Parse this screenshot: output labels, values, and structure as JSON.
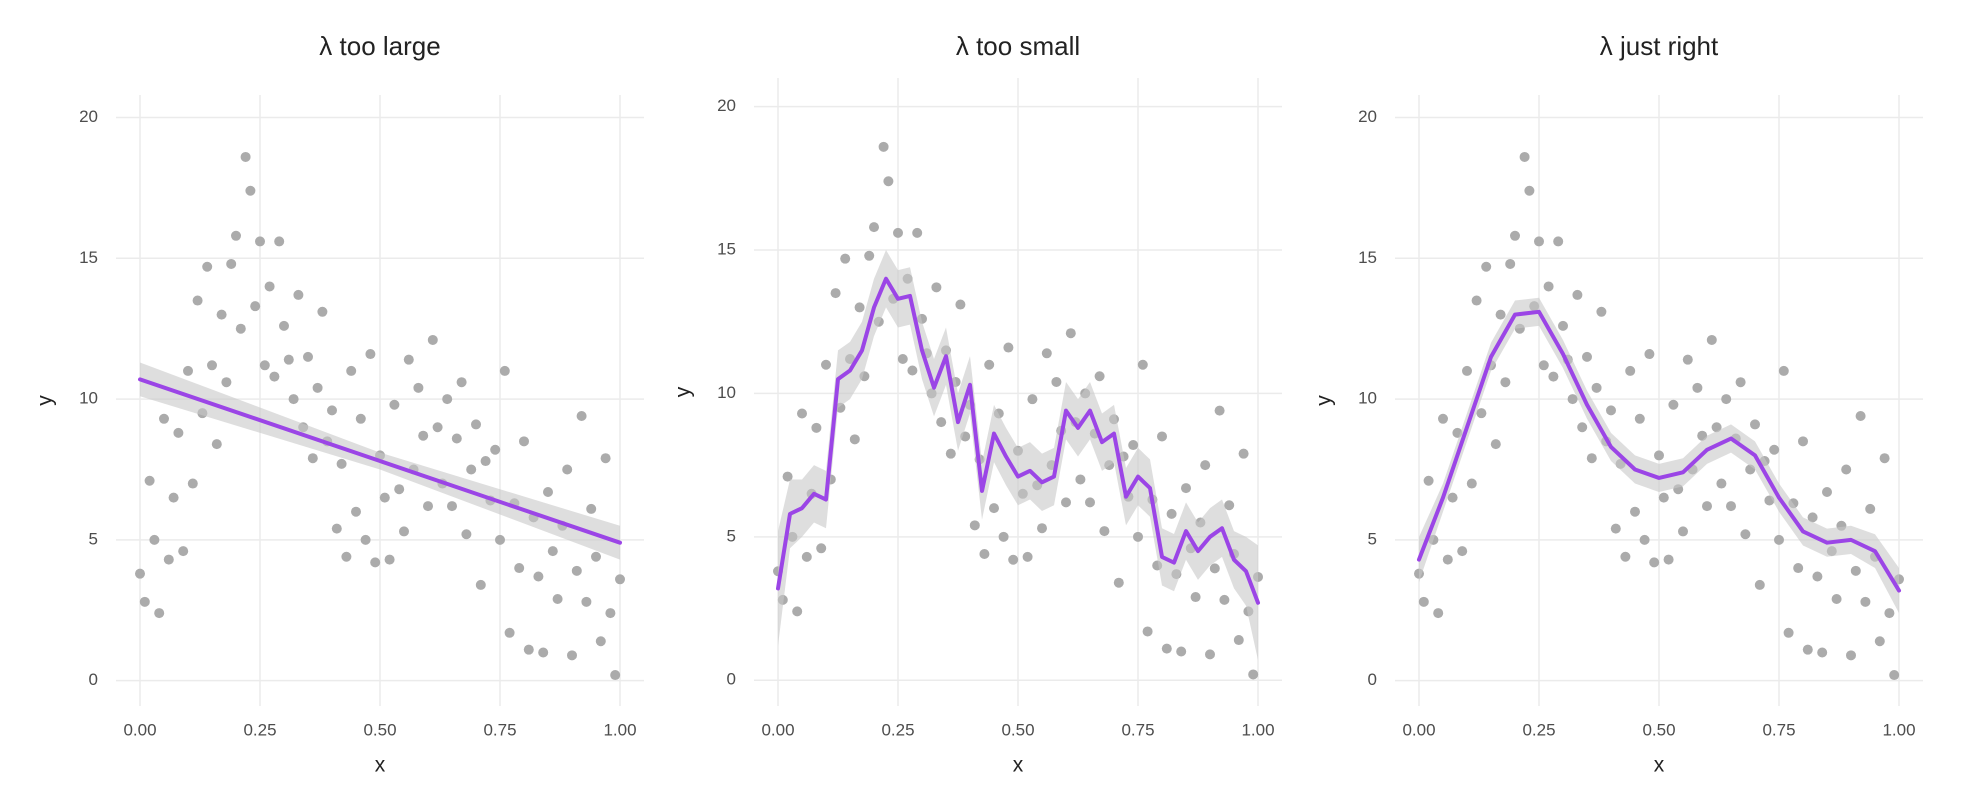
{
  "chart_data": [
    {
      "type": "scatter",
      "title": "λ too large",
      "xlabel": "x",
      "ylabel": "y",
      "point_color": "#ababab",
      "x": [
        0.0,
        0.01,
        0.02,
        0.03,
        0.04,
        0.05,
        0.06,
        0.07,
        0.08,
        0.09,
        0.1,
        0.11,
        0.12,
        0.13,
        0.14,
        0.15,
        0.16,
        0.17,
        0.18,
        0.19,
        0.2,
        0.21,
        0.22,
        0.23,
        0.24,
        0.25,
        0.26,
        0.27,
        0.28,
        0.29,
        0.3,
        0.31,
        0.32,
        0.33,
        0.34,
        0.35,
        0.36,
        0.37,
        0.38,
        0.39,
        0.4,
        0.41,
        0.42,
        0.43,
        0.44,
        0.45,
        0.46,
        0.47,
        0.48,
        0.49,
        0.5,
        0.51,
        0.52,
        0.53,
        0.54,
        0.55,
        0.56,
        0.57,
        0.58,
        0.59,
        0.6,
        0.61,
        0.62,
        0.63,
        0.64,
        0.65,
        0.66,
        0.67,
        0.68,
        0.69,
        0.7,
        0.71,
        0.72,
        0.73,
        0.74,
        0.75,
        0.76,
        0.77,
        0.78,
        0.79,
        0.8,
        0.81,
        0.82,
        0.83,
        0.84,
        0.85,
        0.86,
        0.87,
        0.88,
        0.89,
        0.9,
        0.91,
        0.92,
        0.93,
        0.94,
        0.95,
        0.96,
        0.97,
        0.98,
        0.99,
        1.0
      ],
      "values": [
        3.8,
        2.8,
        7.1,
        5.0,
        2.4,
        9.3,
        4.3,
        6.5,
        8.8,
        4.6,
        11.0,
        7.0,
        13.5,
        9.5,
        14.7,
        11.2,
        8.4,
        13.0,
        10.6,
        14.8,
        15.8,
        12.5,
        18.6,
        17.4,
        13.3,
        15.6,
        11.2,
        14.0,
        10.8,
        15.6,
        12.6,
        11.4,
        10.0,
        13.7,
        9.0,
        11.5,
        7.9,
        10.4,
        13.1,
        8.5,
        9.6,
        5.4,
        7.7,
        4.4,
        11.0,
        6.0,
        9.3,
        5.0,
        11.6,
        4.2,
        8.0,
        6.5,
        4.3,
        9.8,
        6.8,
        5.3,
        11.4,
        7.5,
        10.4,
        8.7,
        6.2,
        12.1,
        9.0,
        7.0,
        10.0,
        6.2,
        8.6,
        10.6,
        5.2,
        7.5,
        9.1,
        3.4,
        7.8,
        6.4,
        8.2,
        5.0,
        11.0,
        1.7,
        6.3,
        4.0,
        8.5,
        1.1,
        5.8,
        3.7,
        1.0,
        6.7,
        4.6,
        2.9,
        5.5,
        7.5,
        0.9,
        3.9,
        9.4,
        2.8,
        6.1,
        4.4,
        1.4,
        7.9,
        2.4,
        0.2,
        3.6
      ],
      "xlim": [
        -0.05,
        1.05
      ],
      "ylim": [
        -0.9,
        20.8
      ],
      "xticks": [
        {
          "value": 0,
          "label": "0.00"
        },
        {
          "value": 0.25,
          "label": "0.25"
        },
        {
          "value": 0.5,
          "label": "0.50"
        },
        {
          "value": 0.75,
          "label": "0.75"
        },
        {
          "value": 1,
          "label": "1.00"
        }
      ],
      "yticks": [
        0,
        5,
        10,
        15,
        20
      ],
      "grid": true,
      "series": [
        {
          "type": "line",
          "color": "#9b45e6",
          "band_color": "#c8c8c8",
          "x": [
            0,
            0.5,
            1
          ],
          "values": [
            10.7,
            7.8,
            4.9
          ],
          "band_lower": [
            10.1,
            7.5,
            4.3
          ],
          "band_upper": [
            11.3,
            8.1,
            5.5
          ]
        }
      ]
    },
    {
      "type": "scatter",
      "title": "λ too small",
      "xlabel": "x",
      "ylabel": "y",
      "point_color": "#ababab",
      "x": [
        0.0,
        0.01,
        0.02,
        0.03,
        0.04,
        0.05,
        0.06,
        0.07,
        0.08,
        0.09,
        0.1,
        0.11,
        0.12,
        0.13,
        0.14,
        0.15,
        0.16,
        0.17,
        0.18,
        0.19,
        0.2,
        0.21,
        0.22,
        0.23,
        0.24,
        0.25,
        0.26,
        0.27,
        0.28,
        0.29,
        0.3,
        0.31,
        0.32,
        0.33,
        0.34,
        0.35,
        0.36,
        0.37,
        0.38,
        0.39,
        0.4,
        0.41,
        0.42,
        0.43,
        0.44,
        0.45,
        0.46,
        0.47,
        0.48,
        0.49,
        0.5,
        0.51,
        0.52,
        0.53,
        0.54,
        0.55,
        0.56,
        0.57,
        0.58,
        0.59,
        0.6,
        0.61,
        0.62,
        0.63,
        0.64,
        0.65,
        0.66,
        0.67,
        0.68,
        0.69,
        0.7,
        0.71,
        0.72,
        0.73,
        0.74,
        0.75,
        0.76,
        0.77,
        0.78,
        0.79,
        0.8,
        0.81,
        0.82,
        0.83,
        0.84,
        0.85,
        0.86,
        0.87,
        0.88,
        0.89,
        0.9,
        0.91,
        0.92,
        0.93,
        0.94,
        0.95,
        0.96,
        0.97,
        0.98,
        0.99,
        1.0
      ],
      "values": [
        3.8,
        2.8,
        7.1,
        5.0,
        2.4,
        9.3,
        4.3,
        6.5,
        8.8,
        4.6,
        11.0,
        7.0,
        13.5,
        9.5,
        14.7,
        11.2,
        8.4,
        13.0,
        10.6,
        14.8,
        15.8,
        12.5,
        18.6,
        17.4,
        13.3,
        15.6,
        11.2,
        14.0,
        10.8,
        15.6,
        12.6,
        11.4,
        10.0,
        13.7,
        9.0,
        11.5,
        7.9,
        10.4,
        13.1,
        8.5,
        9.6,
        5.4,
        7.7,
        4.4,
        11.0,
        6.0,
        9.3,
        5.0,
        11.6,
        4.2,
        8.0,
        6.5,
        4.3,
        9.8,
        6.8,
        5.3,
        11.4,
        7.5,
        10.4,
        8.7,
        6.2,
        12.1,
        9.0,
        7.0,
        10.0,
        6.2,
        8.6,
        10.6,
        5.2,
        7.5,
        9.1,
        3.4,
        7.8,
        6.4,
        8.2,
        5.0,
        11.0,
        1.7,
        6.3,
        4.0,
        8.5,
        1.1,
        5.8,
        3.7,
        1.0,
        6.7,
        4.6,
        2.9,
        5.5,
        7.5,
        0.9,
        3.9,
        9.4,
        2.8,
        6.1,
        4.4,
        1.4,
        7.9,
        2.4,
        0.2,
        3.6
      ],
      "xlim": [
        -0.05,
        1.05
      ],
      "ylim": [
        -0.9,
        21.0
      ],
      "xticks": [
        {
          "value": 0,
          "label": "0.00"
        },
        {
          "value": 0.25,
          "label": "0.25"
        },
        {
          "value": 0.5,
          "label": "0.50"
        },
        {
          "value": 0.75,
          "label": "0.75"
        },
        {
          "value": 1,
          "label": "1.00"
        }
      ],
      "yticks": [
        0,
        5,
        10,
        15,
        20
      ],
      "grid": true,
      "series": [
        {
          "type": "line",
          "color": "#9b45e6",
          "band_color": "#c8c8c8",
          "x": [
            0,
            0.025,
            0.05,
            0.075,
            0.1,
            0.125,
            0.15,
            0.175,
            0.2,
            0.225,
            0.25,
            0.275,
            0.3,
            0.325,
            0.35,
            0.375,
            0.4,
            0.425,
            0.45,
            0.475,
            0.5,
            0.525,
            0.55,
            0.575,
            0.6,
            0.625,
            0.65,
            0.675,
            0.7,
            0.725,
            0.75,
            0.775,
            0.8,
            0.825,
            0.85,
            0.875,
            0.9,
            0.925,
            0.95,
            0.975,
            1.0
          ],
          "values": [
            3.2,
            5.8,
            6.0,
            6.5,
            6.3,
            10.5,
            10.8,
            11.5,
            13.0,
            14.0,
            13.3,
            13.4,
            11.5,
            10.2,
            11.3,
            9.0,
            10.3,
            6.6,
            8.6,
            7.8,
            7.1,
            7.3,
            6.9,
            7.1,
            9.4,
            8.8,
            9.4,
            8.3,
            8.6,
            6.4,
            7.1,
            6.7,
            4.3,
            4.1,
            5.2,
            4.5,
            5.0,
            5.3,
            4.2,
            3.8,
            2.7
          ],
          "band_lower": [
            1.2,
            4.6,
            5.0,
            5.5,
            5.3,
            9.5,
            9.8,
            10.5,
            12.0,
            13.0,
            12.3,
            12.4,
            10.5,
            9.2,
            10.3,
            8.0,
            9.3,
            5.6,
            7.6,
            6.8,
            6.1,
            6.3,
            5.9,
            6.1,
            8.4,
            7.8,
            8.4,
            7.3,
            7.6,
            5.4,
            6.1,
            5.7,
            3.3,
            3.1,
            4.2,
            3.5,
            4.0,
            4.3,
            3.2,
            2.6,
            0.7
          ],
          "band_upper": [
            5.2,
            7.0,
            7.0,
            7.5,
            7.3,
            11.5,
            11.8,
            12.5,
            14.0,
            15.0,
            14.3,
            14.4,
            12.5,
            11.2,
            12.3,
            10.0,
            11.3,
            7.6,
            9.6,
            8.8,
            8.1,
            8.3,
            7.9,
            8.1,
            10.4,
            9.8,
            10.4,
            9.3,
            9.6,
            7.4,
            8.1,
            7.7,
            5.3,
            5.1,
            6.2,
            5.5,
            6.0,
            6.3,
            5.2,
            5.0,
            4.7
          ]
        }
      ]
    },
    {
      "type": "scatter",
      "title": "λ just right",
      "xlabel": "x",
      "ylabel": "y",
      "point_color": "#ababab",
      "x": [
        0.0,
        0.01,
        0.02,
        0.03,
        0.04,
        0.05,
        0.06,
        0.07,
        0.08,
        0.09,
        0.1,
        0.11,
        0.12,
        0.13,
        0.14,
        0.15,
        0.16,
        0.17,
        0.18,
        0.19,
        0.2,
        0.21,
        0.22,
        0.23,
        0.24,
        0.25,
        0.26,
        0.27,
        0.28,
        0.29,
        0.3,
        0.31,
        0.32,
        0.33,
        0.34,
        0.35,
        0.36,
        0.37,
        0.38,
        0.39,
        0.4,
        0.41,
        0.42,
        0.43,
        0.44,
        0.45,
        0.46,
        0.47,
        0.48,
        0.49,
        0.5,
        0.51,
        0.52,
        0.53,
        0.54,
        0.55,
        0.56,
        0.57,
        0.58,
        0.59,
        0.6,
        0.61,
        0.62,
        0.63,
        0.64,
        0.65,
        0.66,
        0.67,
        0.68,
        0.69,
        0.7,
        0.71,
        0.72,
        0.73,
        0.74,
        0.75,
        0.76,
        0.77,
        0.78,
        0.79,
        0.8,
        0.81,
        0.82,
        0.83,
        0.84,
        0.85,
        0.86,
        0.87,
        0.88,
        0.89,
        0.9,
        0.91,
        0.92,
        0.93,
        0.94,
        0.95,
        0.96,
        0.97,
        0.98,
        0.99,
        1.0
      ],
      "values": [
        3.8,
        2.8,
        7.1,
        5.0,
        2.4,
        9.3,
        4.3,
        6.5,
        8.8,
        4.6,
        11.0,
        7.0,
        13.5,
        9.5,
        14.7,
        11.2,
        8.4,
        13.0,
        10.6,
        14.8,
        15.8,
        12.5,
        18.6,
        17.4,
        13.3,
        15.6,
        11.2,
        14.0,
        10.8,
        15.6,
        12.6,
        11.4,
        10.0,
        13.7,
        9.0,
        11.5,
        7.9,
        10.4,
        13.1,
        8.5,
        9.6,
        5.4,
        7.7,
        4.4,
        11.0,
        6.0,
        9.3,
        5.0,
        11.6,
        4.2,
        8.0,
        6.5,
        4.3,
        9.8,
        6.8,
        5.3,
        11.4,
        7.5,
        10.4,
        8.7,
        6.2,
        12.1,
        9.0,
        7.0,
        10.0,
        6.2,
        8.6,
        10.6,
        5.2,
        7.5,
        9.1,
        3.4,
        7.8,
        6.4,
        8.2,
        5.0,
        11.0,
        1.7,
        6.3,
        4.0,
        8.5,
        1.1,
        5.8,
        3.7,
        1.0,
        6.7,
        4.6,
        2.9,
        5.5,
        7.5,
        0.9,
        3.9,
        9.4,
        2.8,
        6.1,
        4.4,
        1.4,
        7.9,
        2.4,
        0.2,
        3.6
      ],
      "xlim": [
        -0.05,
        1.05
      ],
      "ylim": [
        -0.9,
        20.8
      ],
      "xticks": [
        {
          "value": 0,
          "label": "0.00"
        },
        {
          "value": 0.25,
          "label": "0.25"
        },
        {
          "value": 0.5,
          "label": "0.50"
        },
        {
          "value": 0.75,
          "label": "0.75"
        },
        {
          "value": 1,
          "label": "1.00"
        }
      ],
      "yticks": [
        0,
        5,
        10,
        15,
        20
      ],
      "grid": true,
      "series": [
        {
          "type": "line",
          "color": "#9b45e6",
          "band_color": "#c8c8c8",
          "x": [
            0,
            0.05,
            0.1,
            0.15,
            0.2,
            0.25,
            0.3,
            0.35,
            0.4,
            0.45,
            0.5,
            0.55,
            0.6,
            0.65,
            0.7,
            0.75,
            0.8,
            0.85,
            0.9,
            0.95,
            1.0
          ],
          "values": [
            4.3,
            6.5,
            9.0,
            11.5,
            13.0,
            13.1,
            11.6,
            9.8,
            8.3,
            7.5,
            7.2,
            7.4,
            8.2,
            8.6,
            8.0,
            6.5,
            5.3,
            4.9,
            5.0,
            4.6,
            3.2
          ],
          "band_lower": [
            3.5,
            6.0,
            8.5,
            11.0,
            12.5,
            12.6,
            11.1,
            9.3,
            7.8,
            7.0,
            6.7,
            6.9,
            7.7,
            8.1,
            7.5,
            6.0,
            4.8,
            4.4,
            4.5,
            4.0,
            2.4
          ],
          "band_upper": [
            5.1,
            7.0,
            9.5,
            12.0,
            13.5,
            13.6,
            12.1,
            10.3,
            8.8,
            8.0,
            7.7,
            7.9,
            8.7,
            9.1,
            8.5,
            7.0,
            5.8,
            5.4,
            5.5,
            5.2,
            4.0
          ]
        }
      ]
    }
  ]
}
